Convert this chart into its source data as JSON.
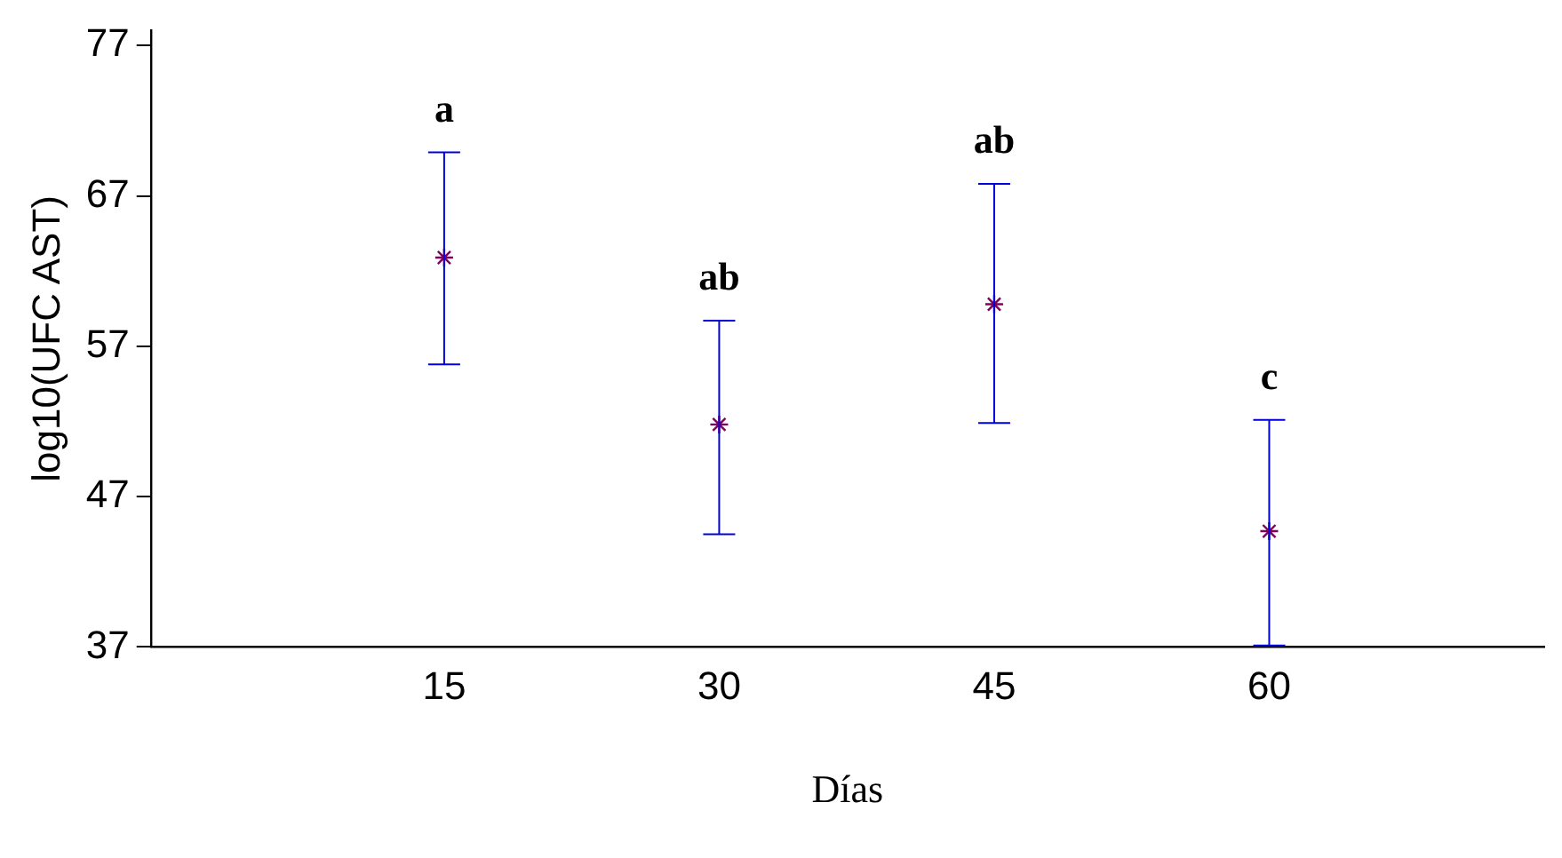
{
  "chart_data": {
    "type": "scatter",
    "xlabel": "Días",
    "ylabel": "log10(UFC AST)",
    "x": [
      15,
      30,
      45,
      60
    ],
    "series": [
      {
        "color": "#800060",
        "values": [
          62.9,
          51.8,
          59.8,
          44.7
        ],
        "errors": [
          [
            55.8,
            69.9
          ],
          [
            44.5,
            58.7
          ],
          [
            51.9,
            67.8
          ],
          [
            37.1,
            52.1
          ]
        ]
      }
    ],
    "marker": "cross",
    "xlim": [
      -1,
      75
    ],
    "xticks": [
      15,
      30,
      45,
      60
    ],
    "ylim": [
      37,
      78
    ],
    "yticks": [
      37,
      47,
      57,
      67,
      77
    ],
    "annotations": [
      "a",
      "ab",
      "ab",
      "c"
    ]
  }
}
